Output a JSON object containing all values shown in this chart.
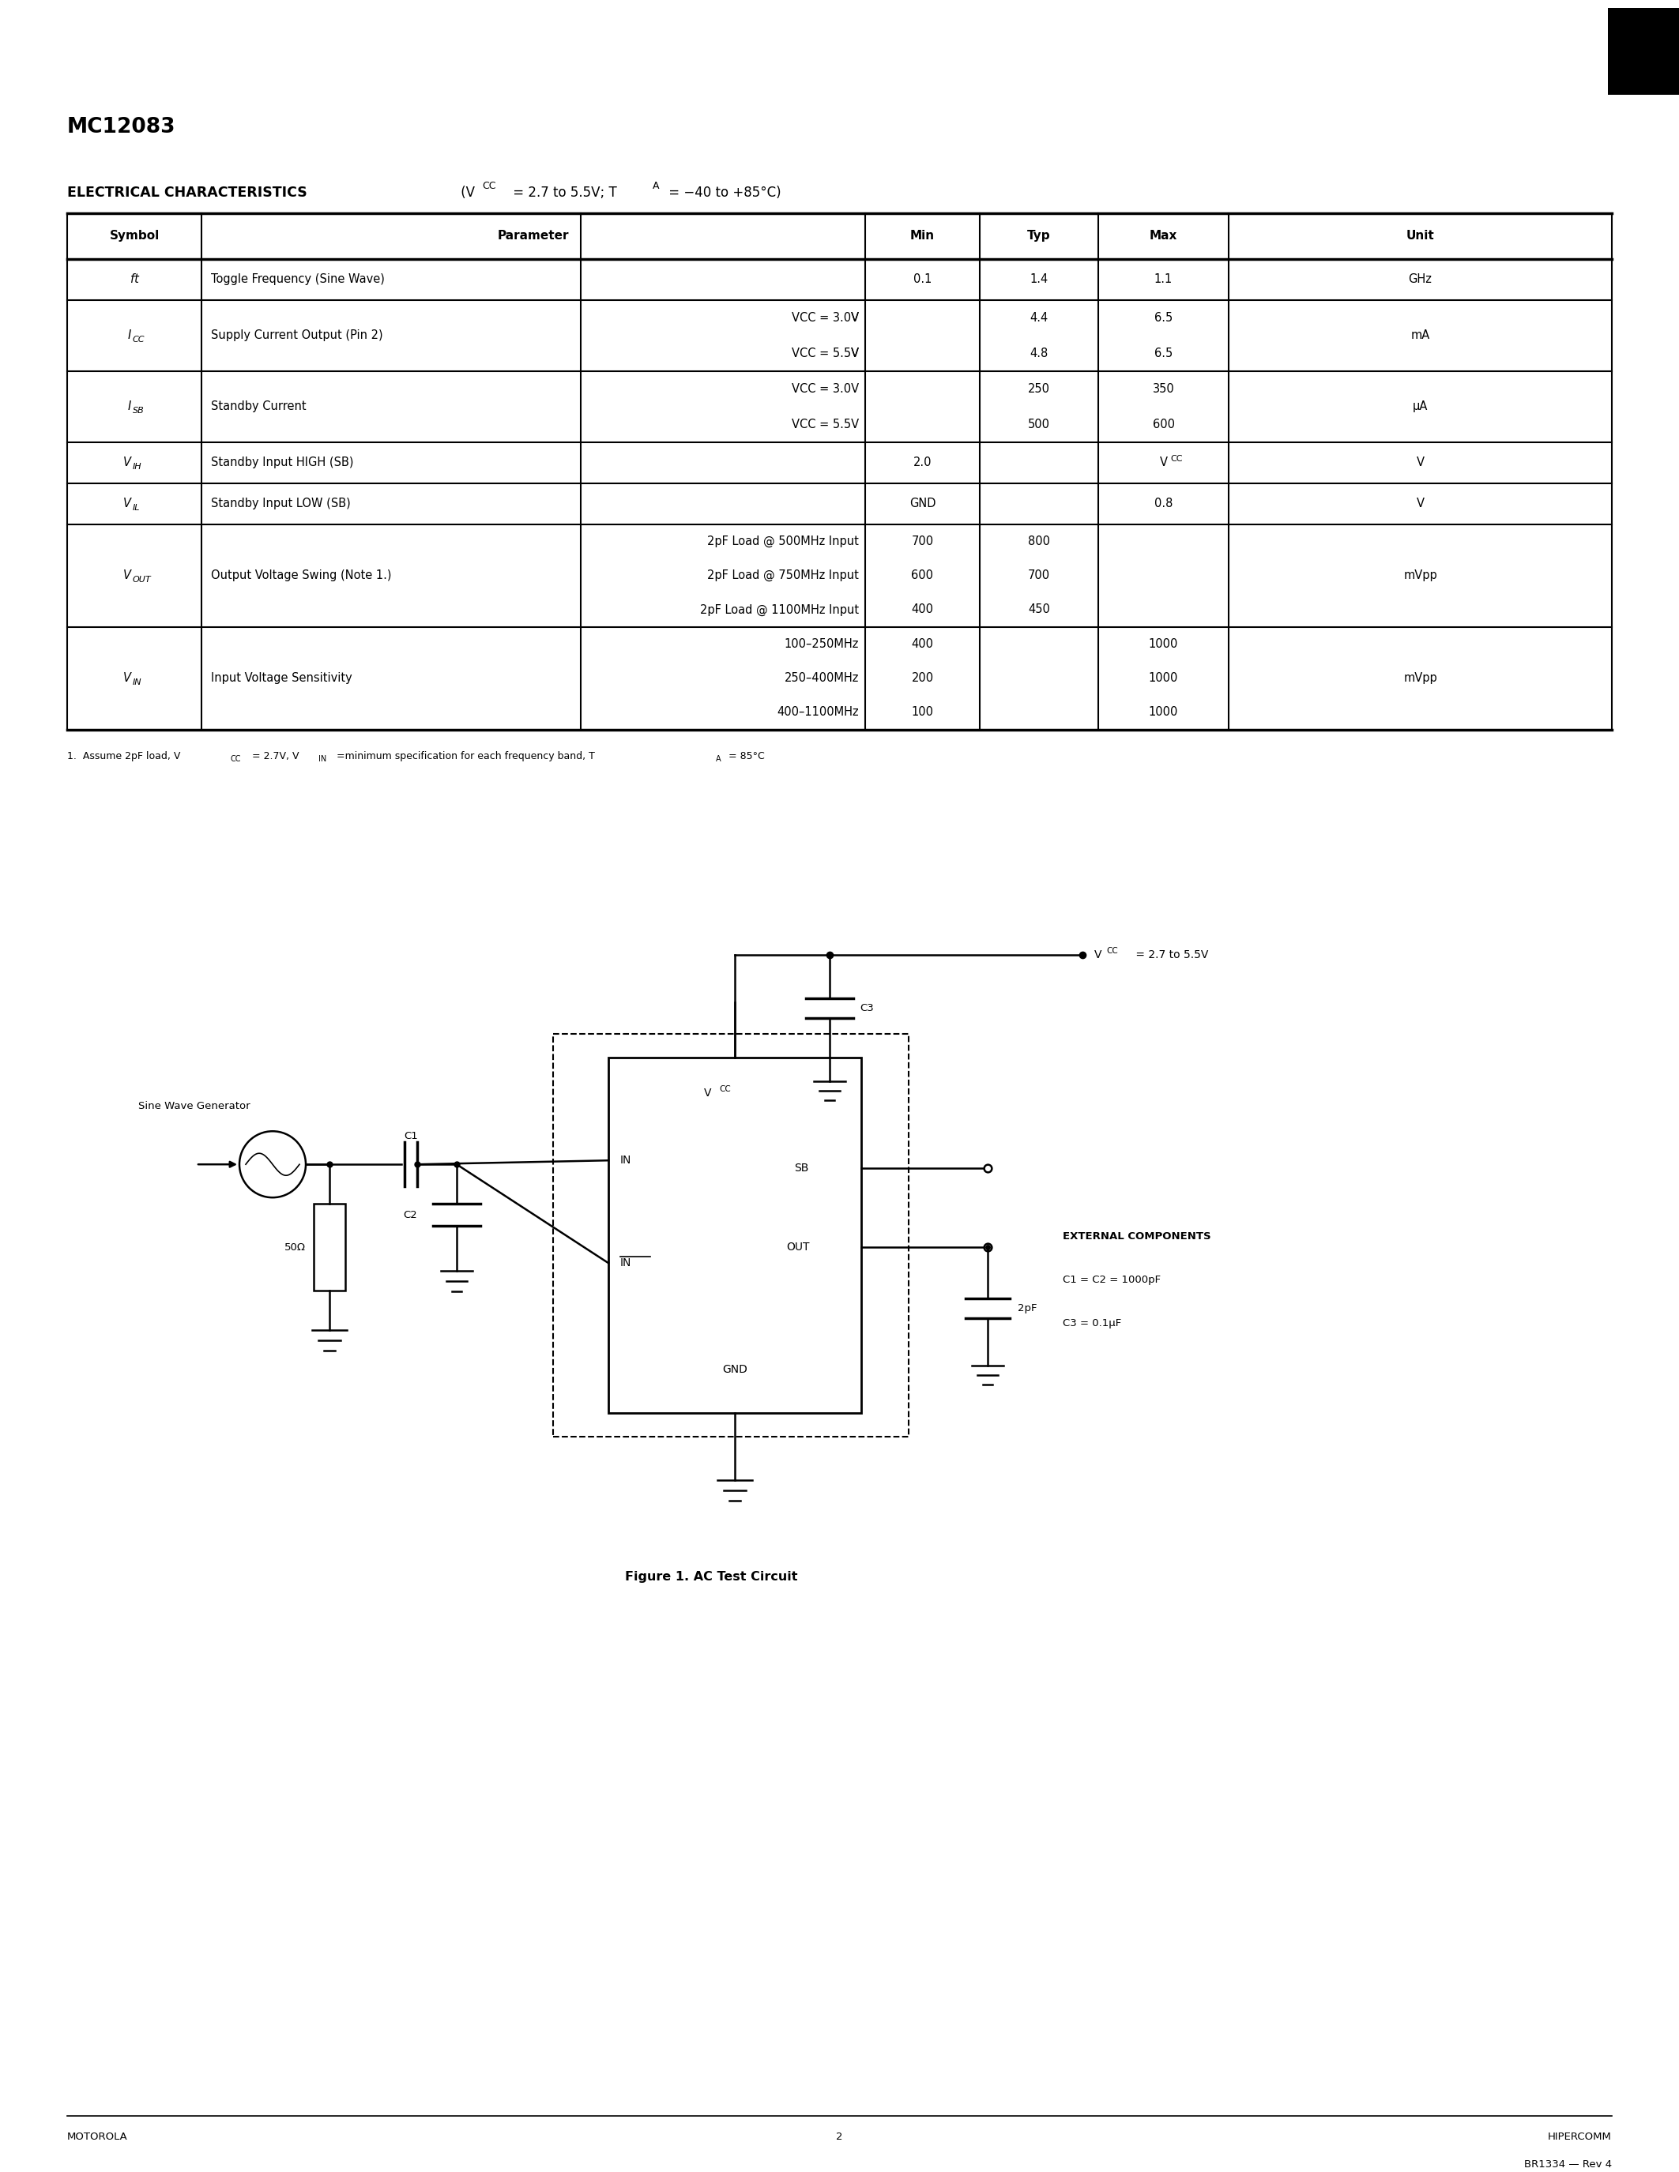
{
  "page_title": "MC12083",
  "footer_left": "MOTOROLA",
  "footer_center": "2",
  "footer_right_1": "HIPERCOMM",
  "footer_right_2": "BR1334 — Rev 4",
  "bg_color": "#ffffff"
}
